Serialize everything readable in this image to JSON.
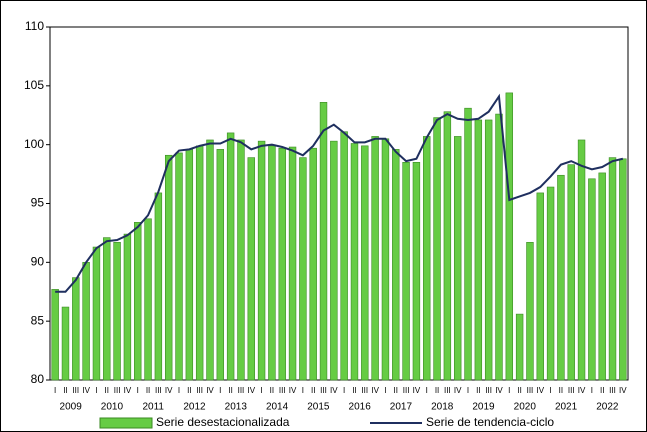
{
  "chart_data": {
    "type": "bar",
    "categories": [
      "I",
      "II",
      "III",
      "IV",
      "I",
      "II",
      "III",
      "IV",
      "I",
      "II",
      "III",
      "IV",
      "I",
      "II",
      "III",
      "IV",
      "I",
      "II",
      "III",
      "IV",
      "I",
      "II",
      "III",
      "IV",
      "I",
      "II",
      "III",
      "IV",
      "I",
      "II",
      "III",
      "IV",
      "I",
      "II",
      "III",
      "IV",
      "I",
      "II",
      "III",
      "IV",
      "I",
      "II",
      "III",
      "IV",
      "I",
      "II",
      "III",
      "IV",
      "I",
      "II",
      "III",
      "IV",
      "I",
      "II",
      "III",
      "IV"
    ],
    "year_labels": [
      "2009",
      "2010",
      "2011",
      "2012",
      "2013",
      "2014",
      "2015",
      "2016",
      "2017",
      "2018",
      "2019",
      "2020",
      "2021",
      "2022"
    ],
    "series": [
      {
        "name": "Serie desestacionalizada",
        "type": "bar",
        "color": "#66cc44",
        "values": [
          87.7,
          86.2,
          88.7,
          90.0,
          91.3,
          92.1,
          91.7,
          92.4,
          93.4,
          93.7,
          95.9,
          99.1,
          99.3,
          99.6,
          99.9,
          100.4,
          99.6,
          101.0,
          100.4,
          98.9,
          100.3,
          99.9,
          99.7,
          99.8,
          98.9,
          99.7,
          103.6,
          100.3,
          101.1,
          100.1,
          99.9,
          100.7,
          100.5,
          99.6,
          98.5,
          98.5,
          100.7,
          102.3,
          102.8,
          100.7,
          103.1,
          102.1,
          102.1,
          102.6,
          104.4,
          85.6,
          91.7,
          95.9,
          96.4,
          97.4,
          98.3,
          100.4,
          97.1,
          97.6,
          98.9,
          98.8
        ]
      },
      {
        "name": "Serie de tendencia-ciclo",
        "type": "line",
        "color": "#1f2f5f",
        "values": [
          87.5,
          87.5,
          88.5,
          90.0,
          91.2,
          91.8,
          91.9,
          92.3,
          93.0,
          94.0,
          96.0,
          98.6,
          99.5,
          99.6,
          99.9,
          100.1,
          100.1,
          100.5,
          100.2,
          99.6,
          99.9,
          100.0,
          99.8,
          99.5,
          99.1,
          99.9,
          101.2,
          101.7,
          101.0,
          100.2,
          100.2,
          100.5,
          100.5,
          99.4,
          98.6,
          98.8,
          100.6,
          102.1,
          102.6,
          102.2,
          102.1,
          102.2,
          102.8,
          104.1,
          95.3,
          95.6,
          95.9,
          96.4,
          97.3,
          98.3,
          98.6,
          98.2,
          97.9,
          98.1,
          98.6,
          98.8
        ]
      }
    ],
    "ylim": [
      80,
      110
    ],
    "yticks": [
      80,
      85,
      90,
      95,
      100,
      105,
      110
    ]
  }
}
